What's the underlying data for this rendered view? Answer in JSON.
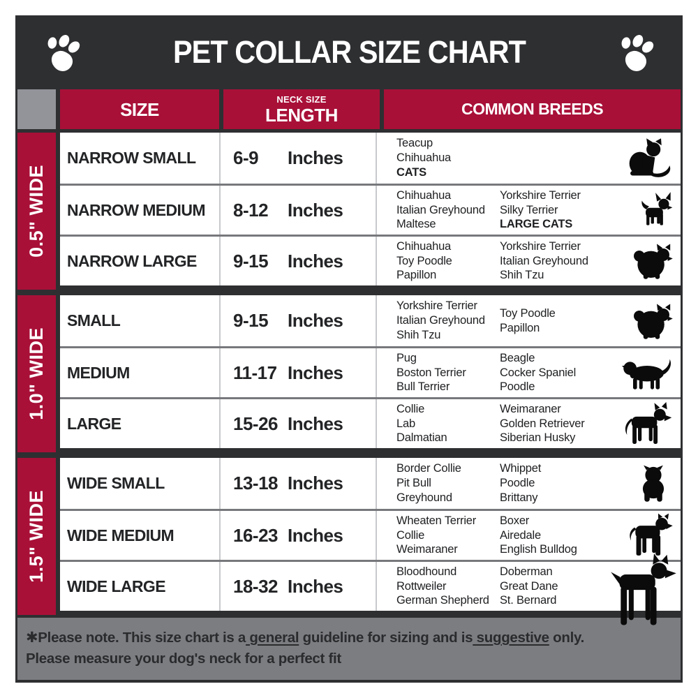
{
  "title": "PET COLLAR SIZE CHART",
  "header_icons": {
    "left": "paw-icon",
    "right": "paw-icon"
  },
  "colors": {
    "accent_red": "#A81038",
    "charcoal": "#2E2F31",
    "corner_gray": "#93949A",
    "footer_gray": "#7C7D81",
    "row_separator": "#77787C",
    "column_line": "#C8C9CC"
  },
  "table": {
    "headers": {
      "size": "SIZE",
      "neck_size": "NECK SIZE",
      "length": "LENGTH",
      "breeds": "COMMON BREEDS"
    },
    "unit": "Inches",
    "groups": [
      {
        "width_label": "0.5\" WIDE",
        "rows": [
          {
            "size": "NARROW SMALL",
            "range": "6-9",
            "breeds_col1": [
              {
                "text": "Teacup"
              },
              {
                "text": "Chihuahua"
              },
              {
                "text": "CATS",
                "bold": true
              }
            ],
            "breeds_col2": [],
            "icon": "cat-icon"
          },
          {
            "size": "NARROW MEDIUM",
            "range": "8-12",
            "breeds_col1": [
              {
                "text": "Chihuahua"
              },
              {
                "text": "Italian Greyhound"
              },
              {
                "text": "Maltese"
              }
            ],
            "breeds_col2": [
              {
                "text": "Yorkshire Terrier"
              },
              {
                "text": "Silky Terrier"
              },
              {
                "text": "LARGE CATS",
                "bold": true
              }
            ],
            "icon": "chihuahua-icon"
          },
          {
            "size": "NARROW LARGE",
            "range": "9-15",
            "breeds_col1": [
              {
                "text": "Chihuahua"
              },
              {
                "text": "Toy Poodle"
              },
              {
                "text": "Papillon"
              }
            ],
            "breeds_col2": [
              {
                "text": "Yorkshire Terrier"
              },
              {
                "text": "Italian Greyhound"
              },
              {
                "text": "Shih Tzu"
              }
            ],
            "icon": "pomeranian-icon"
          }
        ]
      },
      {
        "width_label": "1.0\" WIDE",
        "rows": [
          {
            "size": "SMALL",
            "range": "9-15",
            "breeds_col1": [
              {
                "text": "Yorkshire Terrier"
              },
              {
                "text": "Italian Greyhound"
              },
              {
                "text": "Shih Tzu"
              }
            ],
            "breeds_col2": [
              {
                "text": "Toy Poodle"
              },
              {
                "text": "Papillon"
              }
            ],
            "icon": "pomeranian-icon"
          },
          {
            "size": "MEDIUM",
            "range": "11-17",
            "breeds_col1": [
              {
                "text": "Pug"
              },
              {
                "text": "Boston Terrier"
              },
              {
                "text": "Bull Terrier"
              }
            ],
            "breeds_col2": [
              {
                "text": "Beagle"
              },
              {
                "text": "Cocker Spaniel"
              },
              {
                "text": "Poodle"
              }
            ],
            "icon": "dachshund-icon"
          },
          {
            "size": "LARGE",
            "range": "15-26",
            "breeds_col1": [
              {
                "text": "Collie"
              },
              {
                "text": "Lab"
              },
              {
                "text": "Dalmatian"
              }
            ],
            "breeds_col2": [
              {
                "text": "Weimaraner"
              },
              {
                "text": "Golden Retriever"
              },
              {
                "text": "Siberian Husky"
              }
            ],
            "icon": "shepherd-icon"
          }
        ]
      },
      {
        "width_label": "1.5\" WIDE",
        "rows": [
          {
            "size": "WIDE SMALL",
            "range": "13-18",
            "breeds_col1": [
              {
                "text": "Border Collie"
              },
              {
                "text": "Pit Bull"
              },
              {
                "text": "Greyhound"
              }
            ],
            "breeds_col2": [
              {
                "text": "Whippet"
              },
              {
                "text": "Poodle"
              },
              {
                "text": "Brittany"
              }
            ],
            "icon": "bulldog-icon"
          },
          {
            "size": "WIDE MEDIUM",
            "range": "16-23",
            "breeds_col1": [
              {
                "text": "Wheaten Terrier"
              },
              {
                "text": "Collie"
              },
              {
                "text": "Weimaraner"
              }
            ],
            "breeds_col2": [
              {
                "text": "Boxer"
              },
              {
                "text": "Airedale"
              },
              {
                "text": "English Bulldog"
              }
            ],
            "icon": "pitbull-icon"
          },
          {
            "size": "WIDE LARGE",
            "range": "18-32",
            "breeds_col1": [
              {
                "text": "Bloodhound"
              },
              {
                "text": "Rottweiler"
              },
              {
                "text": "German Shepherd"
              }
            ],
            "breeds_col2": [
              {
                "text": "Doberman"
              },
              {
                "text": "Great Dane"
              },
              {
                "text": "St. Bernard"
              }
            ],
            "icon": "doberman-icon"
          }
        ]
      }
    ]
  },
  "footer": {
    "asterisk": "✱",
    "line1_prefix": "Please note. This size chart is a",
    "line1_underline1": " general",
    "line1_mid": " guideline for sizing and is",
    "line1_underline2": " suggestive",
    "line1_suffix": " only.",
    "line2": "Please measure your dog's neck for a perfect fit"
  }
}
